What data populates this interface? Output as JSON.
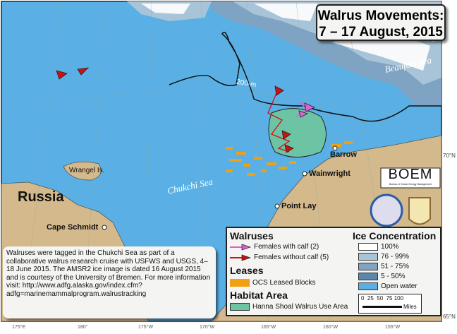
{
  "title": {
    "line1": "Walrus Movements:",
    "line2": "7 – 17 August, 2015"
  },
  "info_text": "Walruses were tagged in the Chukchi Sea as part of a collaborative walrus research cruise with USFWS and USGS, 4–18 June 2015. The AMSR2 ice image is dated 16 August 2015 and is courtesy of the University of Bremen. For more information visit: http://www.adfg.alaska.gov/index.cfm?adfg=marinemammalprogram.walrustracking",
  "places": {
    "russia": "Russia",
    "cape_schmidt": "Cape Schmidt",
    "wrangel": "Wrangel Is.",
    "chukchi": "Chukchi Sea",
    "beaufort": "Beaufort Sea",
    "barrow": "Barrow",
    "wainwright": "Wainwright",
    "point_lay": "Point Lay",
    "depth": "200-m"
  },
  "lon_ticks": [
    "175°E",
    "180°",
    "175°W",
    "170°W",
    "165°W",
    "160°W",
    "155°W"
  ],
  "lat_ticks": [
    "70°N",
    "65°N"
  ],
  "logo": {
    "text": "BOEM",
    "sub": "Bureau of Ocean Energy Management"
  },
  "legend": {
    "walruses": {
      "heading": "Walruses",
      "items": [
        {
          "label": "Females with calf (2)",
          "color": "#e060d0"
        },
        {
          "label": "Females without calf (5)",
          "color": "#d01010"
        }
      ]
    },
    "leases": {
      "heading": "Leases",
      "item": "OCS Leased Blocks",
      "color": "#f0a010"
    },
    "habitat": {
      "heading": "Habitat Area",
      "item": "Hanna Shoal Walrus Use Area",
      "color": "#6cc4a4"
    },
    "ice": {
      "heading": "Ice Concentration",
      "items": [
        {
          "label": "100%",
          "color": "#ffffff"
        },
        {
          "label": "76 - 99%",
          "color": "#a8c4d8"
        },
        {
          "label": "51 - 75%",
          "color": "#7fa3c2"
        },
        {
          "label": "5 - 50%",
          "color": "#5a87b0"
        },
        {
          "label": "Open water",
          "color": "#5ab0e4"
        }
      ]
    },
    "scale": {
      "ticks": "0  25  50  75 100",
      "unit": "Miles"
    }
  },
  "colors": {
    "ocean": "#5ab0e4",
    "land": "#d4b98c"
  }
}
